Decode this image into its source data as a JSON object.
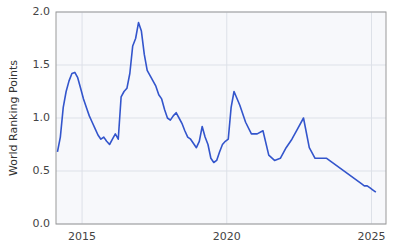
{
  "chart_data": {
    "type": "line",
    "ylabel": "World Ranking Points",
    "color": "#3355cc",
    "grid": true,
    "xlim": [
      2014.1,
      2025.5
    ],
    "ylim": [
      0,
      2
    ],
    "xticks": [
      2015,
      2020,
      2025
    ],
    "yticks": [
      {
        "value": 0,
        "label": "0.0"
      },
      0.5,
      {
        "value": 1,
        "label": "1.0"
      },
      1.5,
      {
        "value": 2,
        "label": "2.0"
      }
    ],
    "x": [
      2014.15,
      2014.25,
      2014.35,
      2014.45,
      2014.55,
      2014.65,
      2014.75,
      2014.85,
      2014.95,
      2015.05,
      2015.15,
      2015.25,
      2015.35,
      2015.45,
      2015.55,
      2015.65,
      2015.75,
      2015.85,
      2015.95,
      2016.05,
      2016.15,
      2016.25,
      2016.35,
      2016.45,
      2016.55,
      2016.65,
      2016.75,
      2016.85,
      2016.95,
      2017.05,
      2017.15,
      2017.25,
      2017.35,
      2017.45,
      2017.55,
      2017.65,
      2017.75,
      2017.85,
      2017.95,
      2018.05,
      2018.15,
      2018.25,
      2018.35,
      2018.45,
      2018.55,
      2018.65,
      2018.75,
      2018.85,
      2018.95,
      2019.05,
      2019.15,
      2019.25,
      2019.35,
      2019.45,
      2019.55,
      2019.65,
      2019.75,
      2019.85,
      2019.95,
      2020.05,
      2020.15,
      2020.25,
      2020.45,
      2020.65,
      2020.85,
      2021.05,
      2021.25,
      2021.45,
      2021.65,
      2021.85,
      2022.05,
      2022.25,
      2022.45,
      2022.65,
      2022.85,
      2023.05,
      2023.25,
      2023.45,
      2024.65,
      2024.75,
      2024.85,
      2024.95,
      2025.05,
      2025.15
    ],
    "values": [
      0.68,
      0.82,
      1.1,
      1.25,
      1.35,
      1.42,
      1.43,
      1.38,
      1.28,
      1.18,
      1.1,
      1.02,
      0.96,
      0.9,
      0.84,
      0.8,
      0.82,
      0.78,
      0.75,
      0.8,
      0.85,
      0.8,
      1.2,
      1.25,
      1.28,
      1.42,
      1.68,
      1.75,
      1.9,
      1.82,
      1.6,
      1.45,
      1.4,
      1.35,
      1.3,
      1.22,
      1.18,
      1.08,
      1.0,
      0.98,
      1.02,
      1.05,
      1.0,
      0.95,
      0.88,
      0.82,
      0.8,
      0.76,
      0.72,
      0.78,
      0.92,
      0.82,
      0.75,
      0.62,
      0.58,
      0.6,
      0.68,
      0.75,
      0.78,
      0.8,
      1.1,
      1.25,
      1.12,
      0.96,
      0.85,
      0.85,
      0.88,
      0.65,
      0.6,
      0.62,
      0.72,
      0.8,
      0.9,
      1.0,
      0.72,
      0.62,
      0.62,
      0.62,
      0.38,
      0.36,
      0.36,
      0.34,
      0.32,
      0.3
    ]
  }
}
